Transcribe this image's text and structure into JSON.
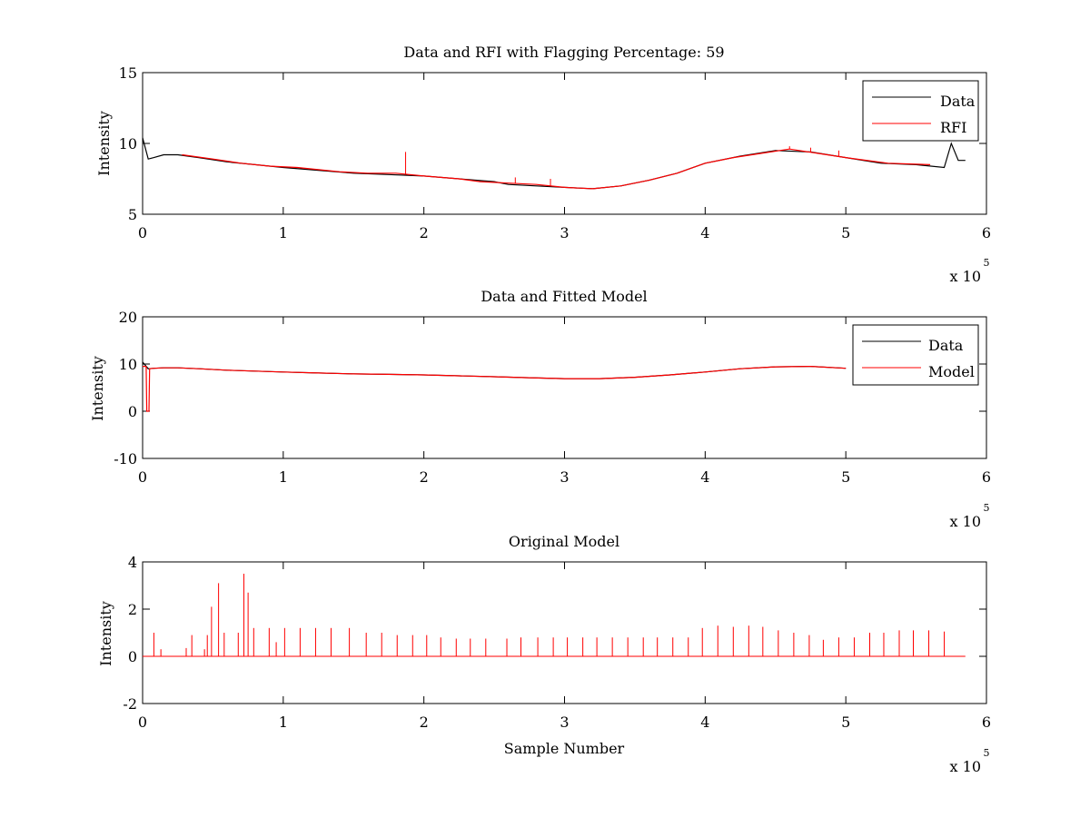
{
  "chart_data": [
    {
      "type": "line",
      "title": "Data and RFI with Flagging Percentage: 59",
      "xlabel": "",
      "ylabel": "Intensity",
      "xlim": [
        0,
        600000
      ],
      "ylim": [
        5,
        15
      ],
      "xticks": [
        0,
        1,
        2,
        3,
        4,
        5,
        6
      ],
      "yticks": [
        5,
        10,
        15
      ],
      "x_exponent_base": "x 10",
      "x_exponent_power": "5",
      "legend": "top-right",
      "grid": false,
      "colors": {
        "Data": "#000000",
        "RFI": "#ff0000"
      },
      "series": [
        {
          "name": "Data",
          "x": [
            0,
            4000,
            8000,
            15000,
            25000,
            40000,
            60000,
            80000,
            100000,
            125000,
            150000,
            175000,
            200000,
            225000,
            250000,
            260000,
            280000,
            300000,
            320000,
            340000,
            360000,
            380000,
            400000,
            425000,
            450000,
            475000,
            500000,
            525000,
            550000,
            570000,
            575000,
            580000,
            585000
          ],
          "y": [
            10.4,
            8.9,
            9.0,
            9.2,
            9.2,
            9.0,
            8.7,
            8.5,
            8.3,
            8.1,
            7.9,
            7.8,
            7.7,
            7.5,
            7.3,
            7.1,
            7.0,
            6.9,
            6.8,
            7.0,
            7.4,
            7.9,
            8.6,
            9.1,
            9.5,
            9.4,
            9.0,
            8.6,
            8.5,
            8.3,
            10.0,
            8.8,
            8.8
          ]
        },
        {
          "name": "RFI",
          "x": [
            28000,
            50000,
            70000,
            90000,
            110000,
            140000,
            160000,
            180000,
            200000,
            225000,
            240000,
            260000,
            280000,
            300000,
            320000,
            340000,
            360000,
            380000,
            400000,
            420000,
            440000,
            460000,
            480000,
            500000,
            530000,
            560000
          ],
          "y": [
            9.2,
            8.9,
            8.6,
            8.4,
            8.3,
            8.0,
            7.9,
            7.9,
            7.7,
            7.5,
            7.3,
            7.2,
            7.1,
            6.9,
            6.8,
            7.0,
            7.4,
            7.9,
            8.6,
            9.0,
            9.3,
            9.6,
            9.3,
            9.0,
            8.6,
            8.5
          ]
        }
      ],
      "spikes": [
        {
          "series": "RFI",
          "x": 187000,
          "y": 9.4
        },
        {
          "series": "RFI",
          "x": 265000,
          "y": 7.6
        },
        {
          "series": "RFI",
          "x": 290000,
          "y": 7.5
        },
        {
          "series": "RFI",
          "x": 460000,
          "y": 9.8
        },
        {
          "series": "RFI",
          "x": 475000,
          "y": 9.7
        },
        {
          "series": "RFI",
          "x": 495000,
          "y": 9.5
        }
      ]
    },
    {
      "type": "line",
      "title": "Data and Fitted Model",
      "xlabel": "",
      "ylabel": "Intensity",
      "xlim": [
        0,
        600000
      ],
      "ylim": [
        -10,
        20
      ],
      "xticks": [
        0,
        1,
        2,
        3,
        4,
        5,
        6
      ],
      "yticks": [
        -10,
        0,
        10,
        20
      ],
      "x_exponent_base": "x 10",
      "x_exponent_power": "5",
      "legend": "top-right",
      "grid": false,
      "colors": {
        "Data": "#000000",
        "Model": "#ff0000"
      },
      "series": [
        {
          "name": "Data",
          "x": [
            0,
            4000,
            8000,
            15000,
            25000,
            40000,
            60000,
            80000,
            100000,
            125000,
            150000,
            175000,
            200000,
            225000,
            250000,
            275000,
            300000,
            325000,
            350000,
            375000,
            400000,
            425000,
            450000,
            475000,
            500000
          ],
          "y": [
            10.4,
            9.0,
            9.1,
            9.2,
            9.2,
            9.0,
            8.7,
            8.5,
            8.3,
            8.1,
            7.9,
            7.8,
            7.7,
            7.5,
            7.3,
            7.1,
            6.9,
            6.9,
            7.2,
            7.7,
            8.3,
            9.0,
            9.4,
            9.5,
            9.1
          ]
        },
        {
          "name": "Model",
          "x": [
            0,
            2500,
            3000,
            4500,
            5000,
            8000,
            15000,
            25000,
            40000,
            60000,
            80000,
            100000,
            125000,
            150000,
            175000,
            200000,
            225000,
            250000,
            275000,
            300000,
            325000,
            350000,
            375000,
            400000,
            425000,
            450000,
            475000,
            500000
          ],
          "y": [
            9.5,
            9.5,
            0,
            0,
            9.0,
            9.1,
            9.2,
            9.2,
            9.0,
            8.7,
            8.5,
            8.3,
            8.1,
            7.9,
            7.8,
            7.7,
            7.5,
            7.3,
            7.1,
            6.9,
            6.9,
            7.2,
            7.7,
            8.3,
            9.0,
            9.4,
            9.5,
            9.1
          ]
        }
      ]
    },
    {
      "type": "line",
      "title": "Original Model",
      "xlabel": "Sample Number",
      "ylabel": "Intensity",
      "xlim": [
        0,
        600000
      ],
      "ylim": [
        -2,
        4
      ],
      "xticks": [
        0,
        1,
        2,
        3,
        4,
        5,
        6
      ],
      "yticks": [
        -2,
        0,
        2,
        4
      ],
      "x_exponent_base": "x 10",
      "x_exponent_power": "5",
      "grid": false,
      "colors": {
        "line": "#ff0000"
      },
      "baseline": {
        "x_start": 0,
        "x_end": 585000,
        "y": 0
      },
      "spikes": [
        {
          "x": 8000,
          "y": 1.0
        },
        {
          "x": 13000,
          "y": 0.3
        },
        {
          "x": 31000,
          "y": 0.35
        },
        {
          "x": 35000,
          "y": 0.9
        },
        {
          "x": 44000,
          "y": 0.3
        },
        {
          "x": 46000,
          "y": 0.9
        },
        {
          "x": 49000,
          "y": 2.1
        },
        {
          "x": 54000,
          "y": 3.1
        },
        {
          "x": 58000,
          "y": 1.0
        },
        {
          "x": 68000,
          "y": 1.0
        },
        {
          "x": 72000,
          "y": 3.5
        },
        {
          "x": 75000,
          "y": 2.7
        },
        {
          "x": 79000,
          "y": 1.2
        },
        {
          "x": 90000,
          "y": 1.2
        },
        {
          "x": 95000,
          "y": 0.6
        },
        {
          "x": 101000,
          "y": 1.2
        },
        {
          "x": 112000,
          "y": 1.2
        },
        {
          "x": 123000,
          "y": 1.2
        },
        {
          "x": 134000,
          "y": 1.2
        },
        {
          "x": 147000,
          "y": 1.2
        },
        {
          "x": 159000,
          "y": 1.0
        },
        {
          "x": 170000,
          "y": 1.0
        },
        {
          "x": 181000,
          "y": 0.9
        },
        {
          "x": 192000,
          "y": 0.9
        },
        {
          "x": 202000,
          "y": 0.9
        },
        {
          "x": 212000,
          "y": 0.8
        },
        {
          "x": 223000,
          "y": 0.75
        },
        {
          "x": 233000,
          "y": 0.75
        },
        {
          "x": 244000,
          "y": 0.75
        },
        {
          "x": 259000,
          "y": 0.75
        },
        {
          "x": 269000,
          "y": 0.8
        },
        {
          "x": 281000,
          "y": 0.8
        },
        {
          "x": 292000,
          "y": 0.8
        },
        {
          "x": 302000,
          "y": 0.8
        },
        {
          "x": 313000,
          "y": 0.8
        },
        {
          "x": 323000,
          "y": 0.8
        },
        {
          "x": 334000,
          "y": 0.8
        },
        {
          "x": 345000,
          "y": 0.8
        },
        {
          "x": 356000,
          "y": 0.8
        },
        {
          "x": 366000,
          "y": 0.8
        },
        {
          "x": 377000,
          "y": 0.8
        },
        {
          "x": 388000,
          "y": 0.8
        },
        {
          "x": 398000,
          "y": 1.2
        },
        {
          "x": 409000,
          "y": 1.3
        },
        {
          "x": 420000,
          "y": 1.25
        },
        {
          "x": 431000,
          "y": 1.3
        },
        {
          "x": 441000,
          "y": 1.25
        },
        {
          "x": 452000,
          "y": 1.1
        },
        {
          "x": 463000,
          "y": 1.0
        },
        {
          "x": 474000,
          "y": 0.9
        },
        {
          "x": 484000,
          "y": 0.7
        },
        {
          "x": 495000,
          "y": 0.8
        },
        {
          "x": 506000,
          "y": 0.8
        },
        {
          "x": 517000,
          "y": 1.0
        },
        {
          "x": 527000,
          "y": 1.0
        },
        {
          "x": 538000,
          "y": 1.1
        },
        {
          "x": 548000,
          "y": 1.1
        },
        {
          "x": 559000,
          "y": 1.1
        },
        {
          "x": 570000,
          "y": 1.05
        }
      ]
    }
  ]
}
